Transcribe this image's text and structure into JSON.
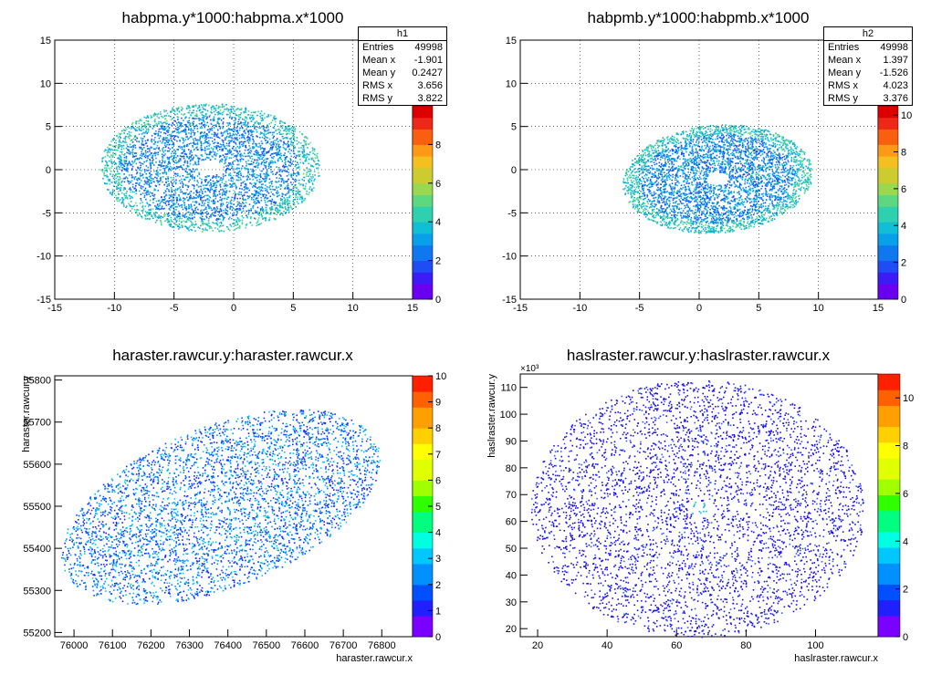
{
  "chart_data": [
    {
      "type": "heatmap",
      "title": "habpma.y*1000:habpma.x*1000",
      "xlabel": "",
      "ylabel": "",
      "xlim": [
        -15,
        15
      ],
      "ylim": [
        -15,
        15
      ],
      "x_ticks": [
        "-15",
        "-10",
        "-5",
        "0",
        "5",
        "10",
        "15"
      ],
      "y_ticks": [
        "15",
        "10",
        "5",
        "0",
        "-5",
        "-10",
        "-15"
      ],
      "z_ticks": [
        "0",
        "2",
        "4",
        "6",
        "8"
      ],
      "z_max": 10,
      "grid": true,
      "stats": {
        "name": "h1",
        "rows": [
          [
            "Entries",
            "49998"
          ],
          [
            "Mean x",
            "-1.901"
          ],
          [
            "Mean y",
            "0.2427"
          ],
          [
            "RMS x",
            "3.656"
          ],
          [
            "RMS y",
            "3.822"
          ]
        ]
      }
    },
    {
      "type": "heatmap",
      "title": "habpmb.y*1000:habpmb.x*1000",
      "xlabel": "",
      "ylabel": "",
      "xlim": [
        -15,
        15
      ],
      "ylim": [
        -15,
        15
      ],
      "x_ticks": [
        "-15",
        "-10",
        "-5",
        "0",
        "5",
        "10",
        "15"
      ],
      "y_ticks": [
        "15",
        "10",
        "5",
        "0",
        "-5",
        "-10",
        "-15"
      ],
      "z_ticks": [
        "0",
        "2",
        "4",
        "6",
        "8",
        "10"
      ],
      "z_max": 10.5,
      "grid": true,
      "stats": {
        "name": "h2",
        "rows": [
          [
            "Entries",
            "49998"
          ],
          [
            "Mean x",
            "1.397"
          ],
          [
            "Mean y",
            "-1.526"
          ],
          [
            "RMS x",
            "4.023"
          ],
          [
            "RMS y",
            "3.376"
          ]
        ]
      }
    },
    {
      "type": "heatmap",
      "title": "haraster.rawcur.y:haraster.rawcur.x",
      "xlabel": "haraster.rawcur.x",
      "ylabel": "haraster.rawcur.y",
      "xlim": [
        75950,
        76880
      ],
      "ylim": [
        55190,
        55810
      ],
      "x_ticks": [
        "76000",
        "76100",
        "76200",
        "76300",
        "76400",
        "76500",
        "76600",
        "76700",
        "76800"
      ],
      "y_ticks": [
        "55800",
        "55700",
        "55600",
        "55500",
        "55400",
        "55300",
        "55200"
      ],
      "z_ticks": [
        "0",
        "1",
        "2",
        "3",
        "4",
        "5",
        "6",
        "7",
        "8",
        "9",
        "10"
      ],
      "z_max": 10,
      "grid": false
    },
    {
      "type": "heatmap",
      "title": "haslraster.rawcur.y:haslraster.rawcur.x",
      "xlabel": "haslraster.rawcur.x",
      "ylabel": "haslraster.rawcur.y",
      "y_multiplier": "×10³",
      "xlim": [
        15,
        118
      ],
      "ylim": [
        17,
        115
      ],
      "x_ticks": [
        "20",
        "40",
        "60",
        "80",
        "100"
      ],
      "y_ticks": [
        "110",
        "100",
        "90",
        "80",
        "70",
        "60",
        "50",
        "40",
        "30",
        "20"
      ],
      "z_ticks": [
        "0",
        "2",
        "4",
        "6",
        "8",
        "10"
      ],
      "z_max": 11,
      "grid": false
    }
  ]
}
